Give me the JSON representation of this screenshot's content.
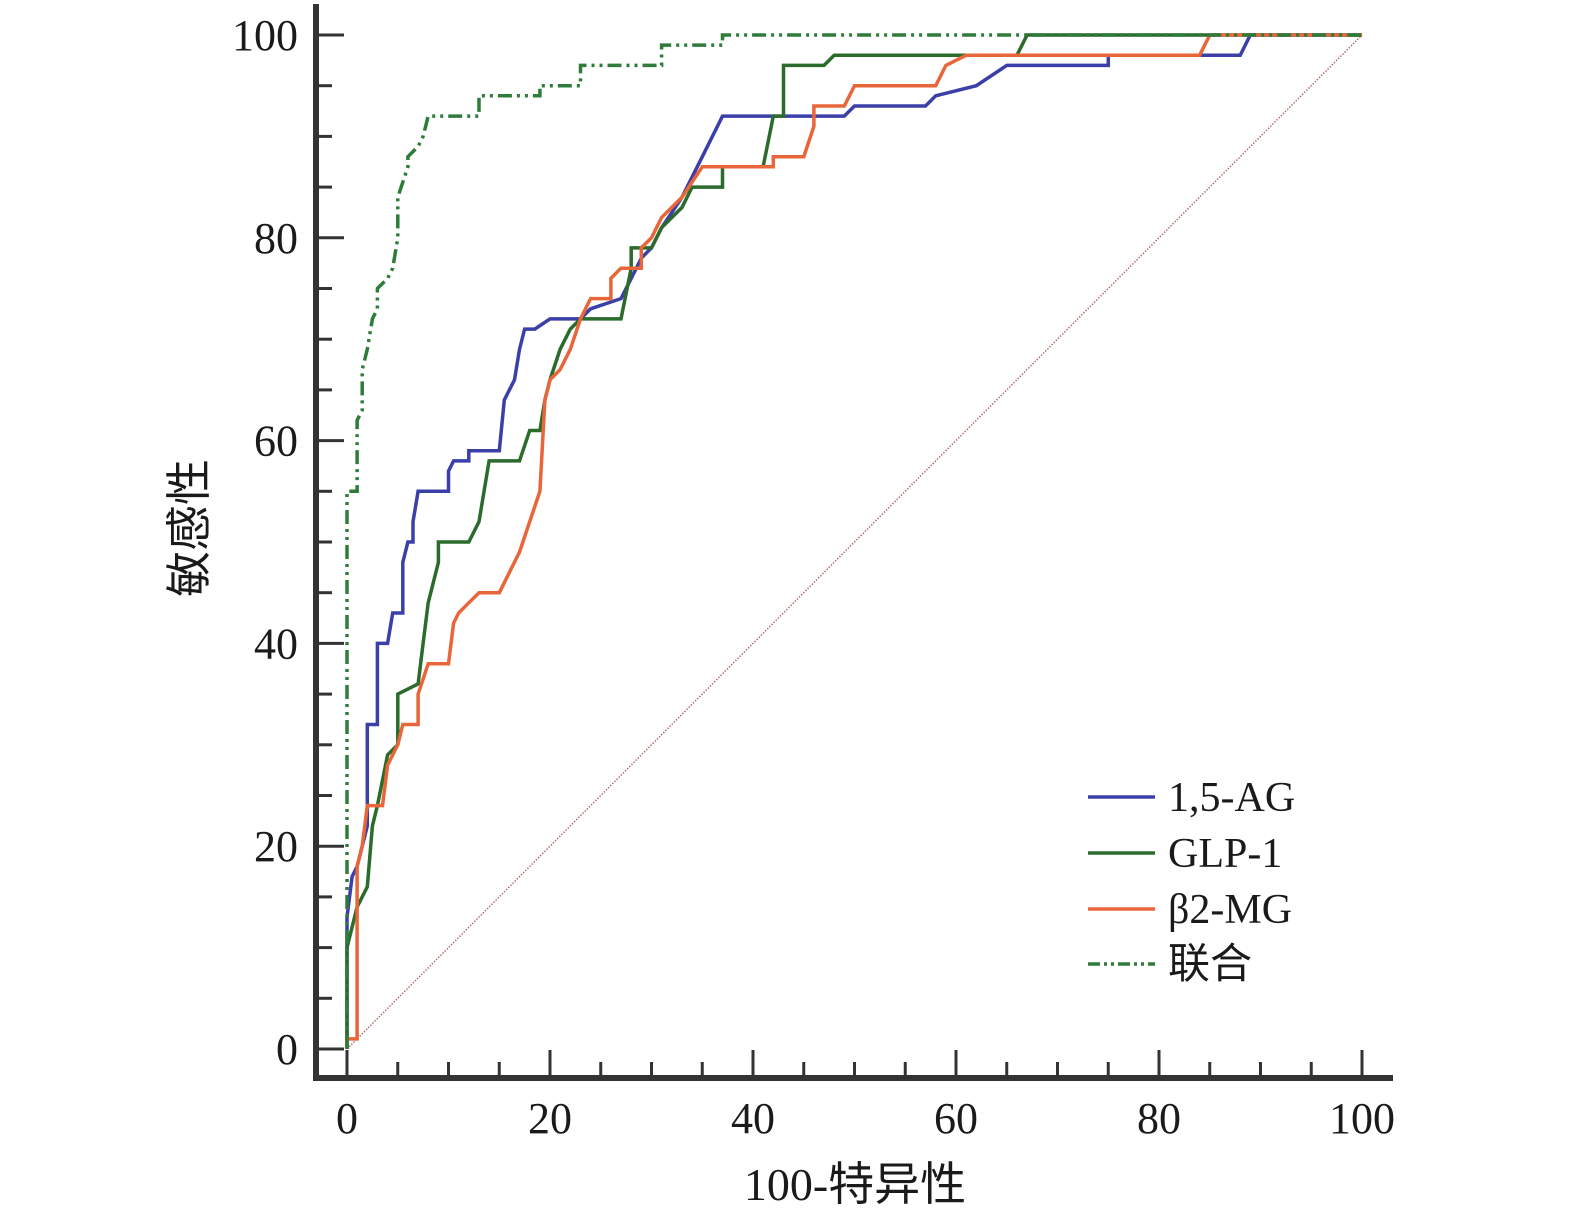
{
  "chart_data": {
    "type": "line",
    "title": "",
    "xlabel": "100-特异性",
    "ylabel": "敏感性",
    "xlim": [
      0,
      100
    ],
    "ylim": [
      0,
      100
    ],
    "x_ticks": [
      "0",
      "20",
      "40",
      "60",
      "80",
      "100"
    ],
    "y_ticks": [
      "0",
      "20",
      "40",
      "60",
      "80",
      "100"
    ],
    "grid": false,
    "legend_position": "bottom-right",
    "colors": {
      "axis": "#333333",
      "reference": "#b07070"
    },
    "series": [
      {
        "name": "1,5-AG",
        "color": "#3b3fa8",
        "style": "solid",
        "points": [
          [
            0,
            0
          ],
          [
            0,
            13
          ],
          [
            0.5,
            17
          ],
          [
            1,
            18
          ],
          [
            1.5,
            20
          ],
          [
            2,
            22
          ],
          [
            2,
            32
          ],
          [
            3,
            32
          ],
          [
            3,
            40
          ],
          [
            4,
            40
          ],
          [
            4.5,
            43
          ],
          [
            5.5,
            43
          ],
          [
            5.5,
            48
          ],
          [
            6,
            50
          ],
          [
            6.5,
            50
          ],
          [
            6.5,
            52
          ],
          [
            7,
            55
          ],
          [
            10,
            55
          ],
          [
            10,
            57
          ],
          [
            10.5,
            58
          ],
          [
            12,
            58
          ],
          [
            12,
            59
          ],
          [
            15,
            59
          ],
          [
            15.5,
            64
          ],
          [
            16.5,
            66
          ],
          [
            17,
            69
          ],
          [
            17.5,
            71
          ],
          [
            18.5,
            71
          ],
          [
            20,
            72
          ],
          [
            23,
            72
          ],
          [
            24,
            73
          ],
          [
            27,
            74
          ],
          [
            28,
            76
          ],
          [
            29,
            78
          ],
          [
            30,
            79
          ],
          [
            31,
            81
          ],
          [
            33,
            84
          ],
          [
            35,
            88
          ],
          [
            36,
            90
          ],
          [
            37,
            92
          ],
          [
            40,
            92
          ],
          [
            49,
            92
          ],
          [
            50,
            93
          ],
          [
            57,
            93
          ],
          [
            58,
            94
          ],
          [
            62,
            95
          ],
          [
            65,
            97
          ],
          [
            75,
            97
          ],
          [
            75,
            98
          ],
          [
            88,
            98
          ],
          [
            89,
            100
          ],
          [
            100,
            100
          ]
        ]
      },
      {
        "name": "GLP-1",
        "color": "#2b6b2b",
        "style": "solid",
        "points": [
          [
            0,
            0
          ],
          [
            0,
            10
          ],
          [
            1,
            14
          ],
          [
            2,
            16
          ],
          [
            2.5,
            22
          ],
          [
            3,
            24
          ],
          [
            4,
            29
          ],
          [
            5,
            30
          ],
          [
            5,
            35
          ],
          [
            7,
            36
          ],
          [
            7.5,
            40
          ],
          [
            8,
            44
          ],
          [
            9,
            48
          ],
          [
            9,
            50
          ],
          [
            12,
            50
          ],
          [
            13,
            52
          ],
          [
            14,
            58
          ],
          [
            17,
            58
          ],
          [
            18,
            61
          ],
          [
            19,
            61
          ],
          [
            19.5,
            64
          ],
          [
            20,
            66
          ],
          [
            21,
            69
          ],
          [
            22,
            71
          ],
          [
            23,
            72
          ],
          [
            24,
            72
          ],
          [
            27,
            72
          ],
          [
            28,
            77
          ],
          [
            28,
            79
          ],
          [
            30,
            79
          ],
          [
            31,
            81
          ],
          [
            32,
            82
          ],
          [
            33,
            83
          ],
          [
            34,
            85
          ],
          [
            37,
            85
          ],
          [
            37,
            87
          ],
          [
            41,
            87
          ],
          [
            42,
            92
          ],
          [
            43,
            92
          ],
          [
            43,
            97
          ],
          [
            47,
            97
          ],
          [
            48,
            98
          ],
          [
            66,
            98
          ],
          [
            67,
            100
          ],
          [
            100,
            100
          ]
        ]
      },
      {
        "name": "β2-MG",
        "color": "#e8663a",
        "style": "solid",
        "points": [
          [
            0,
            0
          ],
          [
            0,
            1
          ],
          [
            1,
            1
          ],
          [
            1,
            18
          ],
          [
            1.5,
            20
          ],
          [
            2,
            24
          ],
          [
            3.5,
            24
          ],
          [
            4,
            28
          ],
          [
            5,
            30
          ],
          [
            5.5,
            32
          ],
          [
            7,
            32
          ],
          [
            7,
            35
          ],
          [
            8,
            38
          ],
          [
            10,
            38
          ],
          [
            10.5,
            42
          ],
          [
            11,
            43
          ],
          [
            12,
            44
          ],
          [
            13,
            45
          ],
          [
            15,
            45
          ],
          [
            16,
            47
          ],
          [
            17,
            49
          ],
          [
            18,
            52
          ],
          [
            19,
            55
          ],
          [
            19.5,
            64
          ],
          [
            20,
            66
          ],
          [
            21,
            67
          ],
          [
            22,
            69
          ],
          [
            23,
            72
          ],
          [
            24,
            74
          ],
          [
            26,
            74
          ],
          [
            26,
            76
          ],
          [
            27,
            77
          ],
          [
            29,
            77
          ],
          [
            29,
            79
          ],
          [
            30,
            80
          ],
          [
            31,
            82
          ],
          [
            33,
            84
          ],
          [
            35,
            87
          ],
          [
            42,
            87
          ],
          [
            42,
            88
          ],
          [
            45,
            88
          ],
          [
            46,
            91
          ],
          [
            46,
            93
          ],
          [
            49,
            93
          ],
          [
            50,
            95
          ],
          [
            58,
            95
          ],
          [
            59,
            97
          ],
          [
            61,
            98
          ],
          [
            84,
            98
          ],
          [
            85,
            100
          ],
          [
            100,
            100
          ]
        ]
      },
      {
        "name": "联合",
        "color": "#2e7b3a",
        "style": "dashdotdot",
        "points": [
          [
            0,
            0
          ],
          [
            0,
            55
          ],
          [
            1,
            55
          ],
          [
            1,
            62
          ],
          [
            1.5,
            63
          ],
          [
            1.5,
            67
          ],
          [
            2,
            69
          ],
          [
            2.5,
            72
          ],
          [
            3,
            73
          ],
          [
            3,
            75
          ],
          [
            4,
            76
          ],
          [
            4.5,
            77
          ],
          [
            5,
            80
          ],
          [
            5,
            84
          ],
          [
            6,
            87
          ],
          [
            6,
            88
          ],
          [
            7,
            89
          ],
          [
            7.5,
            90
          ],
          [
            8,
            92
          ],
          [
            13,
            92
          ],
          [
            13,
            94
          ],
          [
            19,
            94
          ],
          [
            19,
            95
          ],
          [
            23,
            95
          ],
          [
            23,
            97
          ],
          [
            26,
            97
          ],
          [
            26,
            97
          ],
          [
            31,
            97
          ],
          [
            31,
            99
          ],
          [
            37,
            99
          ],
          [
            37,
            100
          ],
          [
            100,
            100
          ]
        ]
      }
    ],
    "reference_line": [
      [
        0,
        0
      ],
      [
        100,
        100
      ]
    ]
  }
}
